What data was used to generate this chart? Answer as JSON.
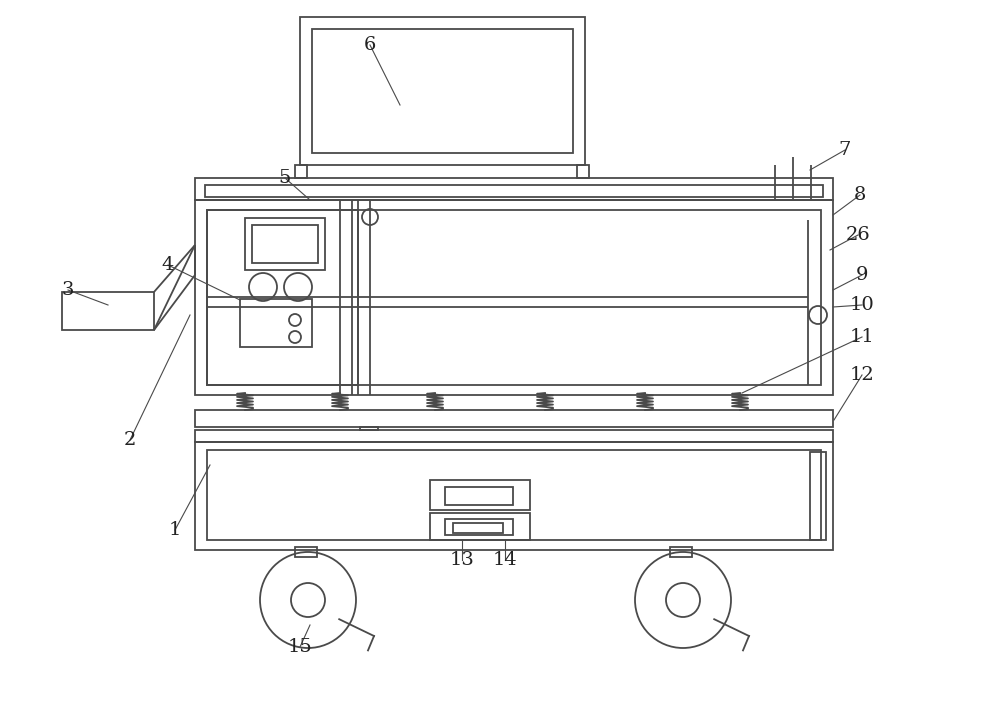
{
  "bg_color": "#ffffff",
  "line_color": "#4a4a4a",
  "line_width": 1.3,
  "label_color": "#222222",
  "label_fontsize": 14,
  "figsize": [
    10.0,
    7.05
  ],
  "dpi": 100
}
